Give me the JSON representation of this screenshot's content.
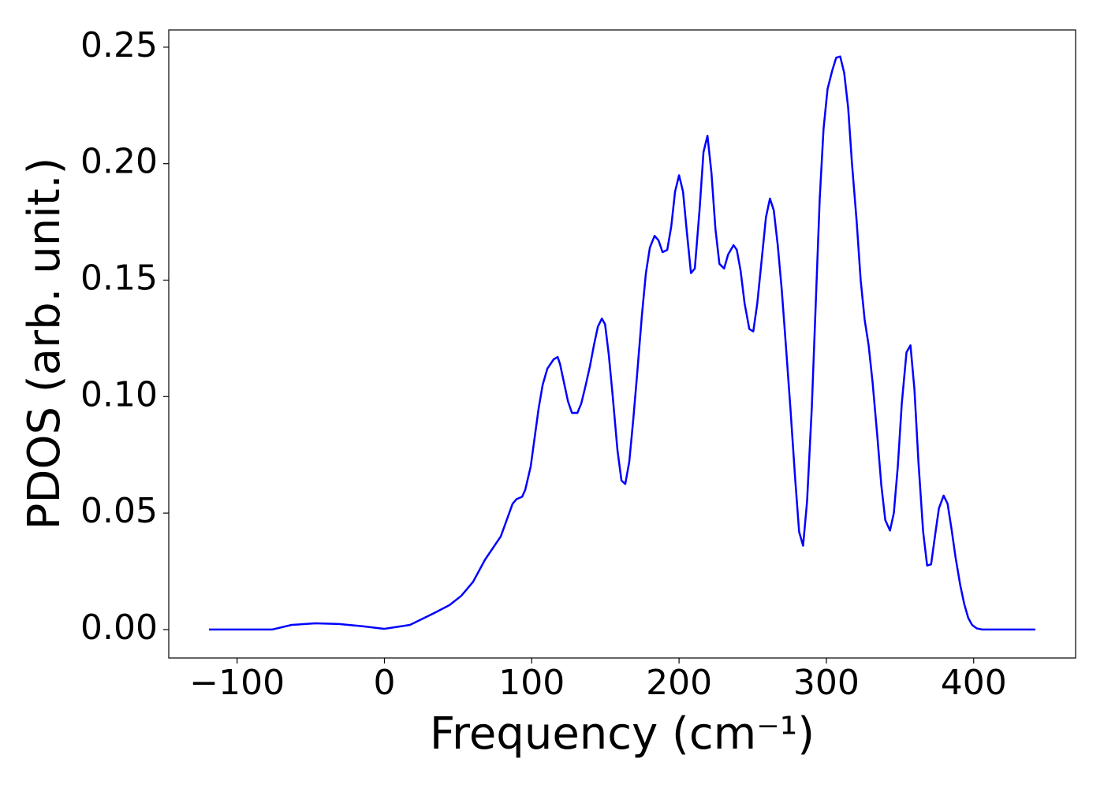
{
  "chart_data": {
    "type": "line",
    "xlabel": "Frequency (cm⁻¹)",
    "ylabel": "PDOS (arb. unit.)",
    "xlim": [
      -146.4,
      469.2
    ],
    "ylim": [
      -0.0122,
      0.2574
    ],
    "xticks": [
      {
        "value": -100,
        "label": "−100"
      },
      0,
      100,
      200,
      300,
      400
    ],
    "yticks": [
      {
        "value": 0,
        "label": "0.00"
      },
      0.05,
      {
        "value": 0.1,
        "label": "0.10"
      },
      0.15,
      {
        "value": 0.2,
        "label": "0.20"
      },
      0.25
    ],
    "grid": false,
    "x": [
      -119.1,
      -76.3,
      -62.9,
      -46.8,
      -30.8,
      -14.7,
      -0.3,
      17.4,
      33.5,
      44.2,
      52.2,
      60.2,
      68.3,
      79.0,
      87.0,
      89.7,
      93.5,
      95.6,
      99.3,
      104.7,
      107.4,
      110.6,
      114.9,
      117.6,
      119.2,
      121.9,
      124.6,
      127.3,
      131.0,
      133.6,
      136.3,
      139.5,
      142.2,
      144.9,
      147.6,
      149.8,
      152.3,
      155.0,
      158.2,
      160.9,
      163.5,
      166.2,
      168.9,
      171.6,
      174.8,
      177.5,
      180.2,
      183.4,
      186.1,
      188.8,
      192.0,
      194.7,
      197.3,
      200.0,
      202.7,
      205.4,
      208.1,
      210.7,
      213.9,
      216.6,
      219.3,
      222.0,
      224.7,
      227.4,
      230.6,
      233.3,
      237.0,
      239.2,
      241.8,
      244.5,
      247.7,
      250.4,
      253.1,
      256.3,
      259.0,
      261.7,
      264.3,
      267.0,
      269.7,
      272.4,
      275.6,
      278.8,
      281.5,
      284.2,
      286.9,
      290.1,
      292.8,
      295.5,
      298.1,
      300.8,
      304.0,
      306.7,
      309.4,
      312.1,
      314.8,
      317.4,
      320.6,
      323.3,
      326.0,
      328.7,
      331.4,
      334.6,
      337.3,
      340.0,
      343.2,
      345.8,
      348.5,
      351.2,
      354.4,
      357.1,
      359.8,
      362.5,
      365.7,
      368.4,
      371.1,
      373.7,
      376.4,
      379.6,
      382.3,
      385.0,
      387.7,
      390.9,
      393.6,
      396.3,
      398.9,
      402.1,
      405.9,
      441.8
    ],
    "series": [
      {
        "name": "PDOS",
        "color": "#0000ff",
        "values": [
          0,
          0,
          0.002,
          0.0027,
          0.0024,
          0.0014,
          0.0003,
          0.002,
          0.007,
          0.0105,
          0.0145,
          0.0205,
          0.03,
          0.04,
          0.054,
          0.056,
          0.057,
          0.06,
          0.07,
          0.095,
          0.105,
          0.112,
          0.116,
          0.117,
          0.114,
          0.106,
          0.098,
          0.093,
          0.093,
          0.097,
          0.104,
          0.113,
          0.122,
          0.13,
          0.1335,
          0.131,
          0.118,
          0.1,
          0.077,
          0.064,
          0.0625,
          0.072,
          0.09,
          0.11,
          0.135,
          0.153,
          0.164,
          0.169,
          0.167,
          0.162,
          0.163,
          0.173,
          0.188,
          0.195,
          0.188,
          0.17,
          0.153,
          0.155,
          0.18,
          0.205,
          0.212,
          0.196,
          0.172,
          0.157,
          0.155,
          0.161,
          0.165,
          0.163,
          0.154,
          0.14,
          0.129,
          0.128,
          0.14,
          0.16,
          0.177,
          0.185,
          0.18,
          0.165,
          0.146,
          0.123,
          0.095,
          0.065,
          0.042,
          0.036,
          0.055,
          0.095,
          0.14,
          0.185,
          0.215,
          0.232,
          0.24,
          0.2455,
          0.246,
          0.239,
          0.224,
          0.2,
          0.175,
          0.15,
          0.133,
          0.122,
          0.106,
          0.083,
          0.062,
          0.047,
          0.0425,
          0.05,
          0.07,
          0.097,
          0.119,
          0.122,
          0.103,
          0.072,
          0.042,
          0.0275,
          0.028,
          0.04,
          0.052,
          0.0575,
          0.054,
          0.043,
          0.031,
          0.019,
          0.011,
          0.005,
          0.002,
          0.0005,
          0,
          0
        ]
      }
    ]
  }
}
